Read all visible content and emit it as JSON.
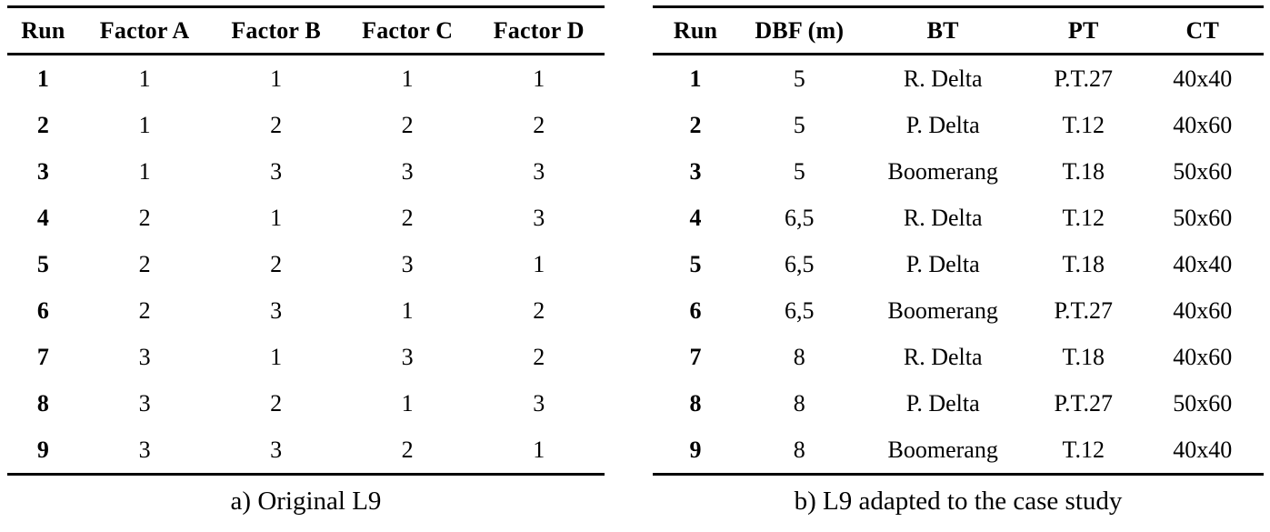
{
  "page": {
    "background_color": "#ffffff",
    "text_color": "#000000",
    "rule_color": "#000000"
  },
  "tables": [
    {
      "id": "original-l9",
      "caption": "a) Original L9",
      "columns": [
        "Run",
        "Factor A",
        "Factor B",
        "Factor C",
        "Factor D"
      ],
      "rows": [
        [
          "1",
          "1",
          "1",
          "1",
          "1"
        ],
        [
          "2",
          "1",
          "2",
          "2",
          "2"
        ],
        [
          "3",
          "1",
          "3",
          "3",
          "3"
        ],
        [
          "4",
          "2",
          "1",
          "2",
          "3"
        ],
        [
          "5",
          "2",
          "2",
          "3",
          "1"
        ],
        [
          "6",
          "2",
          "3",
          "1",
          "2"
        ],
        [
          "7",
          "3",
          "1",
          "3",
          "2"
        ],
        [
          "8",
          "3",
          "2",
          "1",
          "3"
        ],
        [
          "9",
          "3",
          "3",
          "2",
          "1"
        ]
      ]
    },
    {
      "id": "adapted-l9",
      "caption": "b) L9 adapted to the case study",
      "columns": [
        "Run",
        "DBF (m)",
        "BT",
        "PT",
        "CT"
      ],
      "rows": [
        [
          "1",
          "5",
          "R. Delta",
          "P.T.27",
          "40x40"
        ],
        [
          "2",
          "5",
          "P. Delta",
          "T.12",
          "40x60"
        ],
        [
          "3",
          "5",
          "Boomerang",
          "T.18",
          "50x60"
        ],
        [
          "4",
          "6,5",
          "R. Delta",
          "T.12",
          "50x60"
        ],
        [
          "5",
          "6,5",
          "P. Delta",
          "T.18",
          "40x40"
        ],
        [
          "6",
          "6,5",
          "Boomerang",
          "P.T.27",
          "40x60"
        ],
        [
          "7",
          "8",
          "R. Delta",
          "T.18",
          "40x60"
        ],
        [
          "8",
          "8",
          "P. Delta",
          "P.T.27",
          "50x60"
        ],
        [
          "9",
          "8",
          "Boomerang",
          "T.12",
          "40x40"
        ]
      ]
    }
  ]
}
